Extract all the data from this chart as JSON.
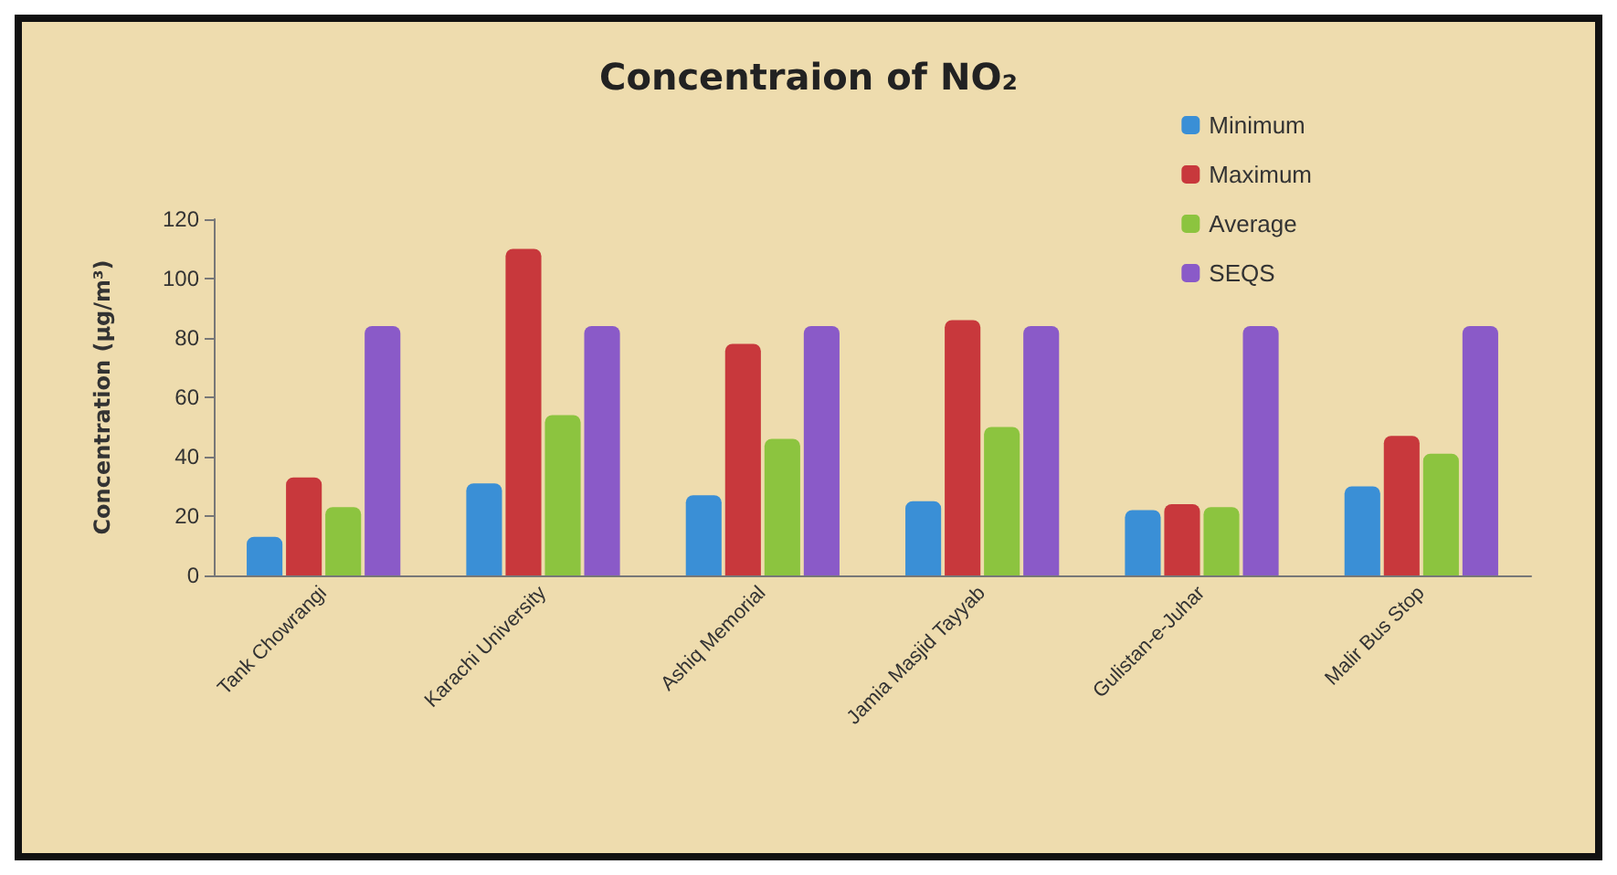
{
  "chart_data": {
    "type": "bar",
    "title": "Concentraion of NO₂",
    "ylabel": "Concentration (µg/m³)",
    "categories": [
      "Tank Chowrangi",
      "Karachi University",
      "Ashiq Memorial",
      "Jamia Masjid Tayyab",
      "Gulistan-e-Juhar",
      "Malir Bus Stop"
    ],
    "series": [
      {
        "name": "Minimum",
        "color": "#3a8fd6",
        "values": [
          13,
          31,
          27,
          25,
          22,
          30
        ]
      },
      {
        "name": "Maximum",
        "color": "#c8383c",
        "values": [
          33,
          110,
          78,
          86,
          24,
          47
        ]
      },
      {
        "name": "Average",
        "color": "#8cc43f",
        "values": [
          23,
          54,
          46,
          50,
          23,
          41
        ]
      },
      {
        "name": "SEQS",
        "color": "#8a5ac8",
        "values": [
          84,
          84,
          84,
          84,
          84,
          84
        ]
      }
    ],
    "ylim": [
      0,
      120
    ],
    "yticks": [
      0,
      20,
      40,
      60,
      80,
      100,
      120
    ],
    "grid": false,
    "legend": "top right"
  }
}
